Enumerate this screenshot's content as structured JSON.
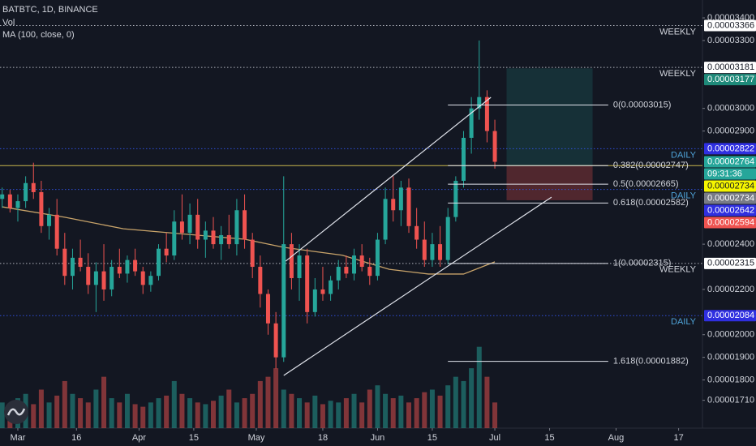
{
  "chart_data": {
    "type": "candlestick",
    "up_color": "#26a69a",
    "down_color": "#ef5350",
    "xlim": [
      -4.56,
      175.1
    ],
    "ylim": [
      1.587e-05,
      3.479e-05
    ],
    "xticks": [
      {
        "value": 0,
        "label": "Mar"
      },
      {
        "value": 15,
        "label": "16"
      },
      {
        "value": 31,
        "label": "Apr"
      },
      {
        "value": 45,
        "label": "15"
      },
      {
        "value": 61,
        "label": "May"
      },
      {
        "value": 78,
        "label": "18"
      },
      {
        "value": 92,
        "label": "Jun"
      },
      {
        "value": 106,
        "label": "15"
      },
      {
        "value": 122,
        "label": "Jul"
      },
      {
        "value": 136,
        "label": "15"
      },
      {
        "value": 153,
        "label": "Aug"
      },
      {
        "value": 169,
        "label": "17"
      }
    ],
    "yticks": [
      {
        "value": 3.4e-05,
        "label": "0.00003400"
      },
      {
        "value": 3.3e-05,
        "label": "0.00003300"
      },
      {
        "value": 3e-05,
        "label": "0.00003000"
      },
      {
        "value": 2.9e-05,
        "label": "0.00002900"
      },
      {
        "value": 2.4e-05,
        "label": "0.00002400"
      },
      {
        "value": 2.2e-05,
        "label": "0.00002200"
      },
      {
        "value": 2e-05,
        "label": "0.00002000"
      },
      {
        "value": 1.9e-05,
        "label": "0.00001900"
      },
      {
        "value": 1.8e-05,
        "label": "0.00001800"
      },
      {
        "value": 1.71e-05,
        "label": "0.00001710"
      }
    ],
    "x": [
      -4,
      -2,
      0,
      2,
      4,
      6,
      8,
      10,
      12,
      14,
      16,
      18,
      20,
      22,
      24,
      26,
      28,
      30,
      32,
      34,
      36,
      38,
      40,
      42,
      44,
      46,
      48,
      50,
      52,
      54,
      56,
      58,
      60,
      62,
      64,
      66,
      68,
      70,
      72,
      74,
      76,
      78,
      80,
      82,
      84,
      86,
      88,
      90,
      92,
      94,
      96,
      98,
      100,
      102,
      104,
      106,
      108,
      110,
      112,
      114,
      116,
      118,
      120,
      122
    ],
    "series": [
      {
        "name": "BATBTC, 1D, BINANCE",
        "ohlc": [
          [
            2.6e-05,
            2.65e-05,
            2.56e-05,
            2.62e-05
          ],
          [
            2.62e-05,
            2.64e-05,
            2.54e-05,
            2.56e-05
          ],
          [
            2.56e-05,
            2.62e-05,
            2.5e-05,
            2.59e-05
          ],
          [
            2.59e-05,
            2.7e-05,
            2.56e-05,
            2.67e-05
          ],
          [
            2.67e-05,
            2.76e-05,
            2.6e-05,
            2.63e-05
          ],
          [
            2.63e-05,
            2.68e-05,
            2.45e-05,
            2.48e-05
          ],
          [
            2.48e-05,
            2.56e-05,
            2.42e-05,
            2.53e-05
          ],
          [
            2.53e-05,
            2.6e-05,
            2.35e-05,
            2.38e-05
          ],
          [
            2.38e-05,
            2.45e-05,
            2.22e-05,
            2.26e-05
          ],
          [
            2.26e-05,
            2.38e-05,
            2.2e-05,
            2.34e-05
          ],
          [
            2.34e-05,
            2.42e-05,
            2.28e-05,
            2.3e-05
          ],
          [
            2.3e-05,
            2.36e-05,
            2.18e-05,
            2.22e-05
          ],
          [
            2.22e-05,
            2.32e-05,
            2.1e-05,
            2.28e-05
          ],
          [
            2.28e-05,
            2.4e-05,
            2.15e-05,
            2.2e-05
          ],
          [
            2.2e-05,
            2.33e-05,
            2.17e-05,
            2.3e-05
          ],
          [
            2.3e-05,
            2.38e-05,
            2.25e-05,
            2.27e-05
          ],
          [
            2.27e-05,
            2.35e-05,
            2.23e-05,
            2.33e-05
          ],
          [
            2.33e-05,
            2.38e-05,
            2.26e-05,
            2.28e-05
          ],
          [
            2.28e-05,
            2.3e-05,
            2.18e-05,
            2.22e-05
          ],
          [
            2.22e-05,
            2.28e-05,
            2.19e-05,
            2.26e-05
          ],
          [
            2.26e-05,
            2.4e-05,
            2.24e-05,
            2.38e-05
          ],
          [
            2.38e-05,
            2.45e-05,
            2.32e-05,
            2.35e-05
          ],
          [
            2.35e-05,
            2.55e-05,
            2.33e-05,
            2.5e-05
          ],
          [
            2.5e-05,
            2.62e-05,
            2.42e-05,
            2.45e-05
          ],
          [
            2.45e-05,
            2.58e-05,
            2.4e-05,
            2.53e-05
          ],
          [
            2.53e-05,
            2.6e-05,
            2.38e-05,
            2.42e-05
          ],
          [
            2.42e-05,
            2.5e-05,
            2.34e-05,
            2.46e-05
          ],
          [
            2.46e-05,
            2.52e-05,
            2.38e-05,
            2.4e-05
          ],
          [
            2.4e-05,
            2.48e-05,
            2.33e-05,
            2.44e-05
          ],
          [
            2.44e-05,
            2.53e-05,
            2.38e-05,
            2.4e-05
          ],
          [
            2.4e-05,
            2.6e-05,
            2.35e-05,
            2.55e-05
          ],
          [
            2.55e-05,
            2.62e-05,
            2.38e-05,
            2.42e-05
          ],
          [
            2.42e-05,
            2.45e-05,
            2.25e-05,
            2.3e-05
          ],
          [
            2.3e-05,
            2.35e-05,
            2.12e-05,
            2.18e-05
          ],
          [
            2.18e-05,
            2.2e-05,
            2e-05,
            2.05e-05
          ],
          [
            2.05e-05,
            2.1e-05,
            1.85e-05,
            1.9e-05
          ],
          [
            1.9e-05,
            2.7e-05,
            1.88e-05,
            2.4e-05
          ],
          [
            2.4e-05,
            2.45e-05,
            2.2e-05,
            2.25e-05
          ],
          [
            2.25e-05,
            2.4e-05,
            2.15e-05,
            2.35e-05
          ],
          [
            2.35e-05,
            2.38e-05,
            2.05e-05,
            2.1e-05
          ],
          [
            2.1e-05,
            2.25e-05,
            2.08e-05,
            2.2e-05
          ],
          [
            2.2e-05,
            2.3e-05,
            2.15e-05,
            2.18e-05
          ],
          [
            2.18e-05,
            2.26e-05,
            2.15e-05,
            2.24e-05
          ],
          [
            2.24e-05,
            2.33e-05,
            2.2e-05,
            2.3e-05
          ],
          [
            2.3e-05,
            2.35e-05,
            2.25e-05,
            2.27e-05
          ],
          [
            2.27e-05,
            2.38e-05,
            2.24e-05,
            2.35e-05
          ],
          [
            2.35e-05,
            2.4e-05,
            2.28e-05,
            2.3e-05
          ],
          [
            2.3e-05,
            2.34e-05,
            2.22e-05,
            2.26e-05
          ],
          [
            2.26e-05,
            2.45e-05,
            2.24e-05,
            2.42e-05
          ],
          [
            2.42e-05,
            2.65e-05,
            2.4e-05,
            2.6e-05
          ],
          [
            2.6e-05,
            2.7e-05,
            2.5e-05,
            2.55e-05
          ],
          [
            2.55e-05,
            2.68e-05,
            2.48e-05,
            2.65e-05
          ],
          [
            2.65e-05,
            2.69e-05,
            2.45e-05,
            2.48e-05
          ],
          [
            2.48e-05,
            2.56e-05,
            2.38e-05,
            2.42e-05
          ],
          [
            2.42e-05,
            2.5e-05,
            2.3e-05,
            2.33e-05
          ],
          [
            2.33e-05,
            2.45e-05,
            2.3e-05,
            2.4e-05
          ],
          [
            2.4e-05,
            2.48e-05,
            2.3e-05,
            2.33e-05
          ],
          [
            2.33e-05,
            2.56e-05,
            2.31e-05,
            2.52e-05
          ],
          [
            2.52e-05,
            2.7e-05,
            2.5e-05,
            2.68e-05
          ],
          [
            2.68e-05,
            2.9e-05,
            2.65e-05,
            2.87e-05
          ],
          [
            2.87e-05,
            3.05e-05,
            2.8e-05,
            3e-05
          ],
          [
            3e-05,
            3.3e-05,
            2.95e-05,
            3.05e-05
          ],
          [
            3.05e-05,
            3.08e-05,
            2.85e-05,
            2.9e-05
          ],
          [
            2.9e-05,
            2.95e-05,
            2.734e-05,
            2.764e-05
          ]
        ]
      },
      {
        "name": "Vol",
        "vol_lim": [
          0,
          500
        ],
        "values": [
          30,
          25,
          35,
          40,
          28,
          45,
          30,
          38,
          55,
          40,
          35,
          30,
          45,
          60,
          35,
          30,
          40,
          28,
          25,
          30,
          35,
          38,
          55,
          40,
          35,
          30,
          28,
          32,
          38,
          45,
          30,
          35,
          40,
          55,
          60,
          70,
          45,
          40,
          35,
          30,
          38,
          28,
          32,
          30,
          35,
          40,
          30,
          45,
          50,
          40,
          35,
          38,
          30,
          35,
          42,
          45,
          38,
          50,
          60,
          55,
          70,
          95,
          60,
          30
        ]
      },
      {
        "name": "MA (100, close, 0)",
        "color": "#c9a46a",
        "x": [
          -4,
          12,
          27,
          41,
          58,
          68,
          83,
          95,
          105,
          114,
          122
        ],
        "values": [
          2.565e-05,
          2.519e-05,
          2.468e-05,
          2.447e-05,
          2.422e-05,
          2.386e-05,
          2.351e-05,
          2.289e-05,
          2.268e-05,
          2.268e-05,
          2.322e-05
        ]
      }
    ],
    "levels": [
      {
        "value": 3.366e-05,
        "label": "WEEKLY",
        "color": "#b2b5be",
        "dash": true
      },
      {
        "value": 3.181e-05,
        "label": "WEEKLY",
        "color": "#b2b5be",
        "dash": true
      },
      {
        "value": 2.822e-05,
        "label": "DAILY",
        "color": "#2f4fd8",
        "dash": true
      },
      {
        "value": 2.747e-05,
        "color": "#c9b74c",
        "dash": false
      },
      {
        "value": 2.642e-05,
        "label": "DAILY",
        "color": "#2f4fd8",
        "dash": true
      },
      {
        "value": 2.315e-05,
        "label": "WEEKLY",
        "color": "#b2b5be",
        "dash": true
      },
      {
        "value": 2.084e-05,
        "label": "DAILY",
        "color": "#2f4fd8",
        "dash": true
      }
    ],
    "fib": {
      "x": [
        110,
        151
      ],
      "levels": [
        {
          "value": 3.015e-05,
          "label": "0(0.00003015)"
        },
        {
          "value": 2.747e-05,
          "label": "0.382(0.00002747)"
        },
        {
          "value": 2.665e-05,
          "label": "0.5(0.00002665)"
        },
        {
          "value": 2.582e-05,
          "label": "0.618(0.00002582)"
        },
        {
          "value": 2.315e-05,
          "label": "1(0.00002315)"
        },
        {
          "value": 1.882e-05,
          "label": "1.618(0.00001882)"
        }
      ]
    },
    "trend_lines": [
      {
        "x": [
          68.5,
          121
        ],
        "y": [
          2.325e-05,
          3.049e-05
        ]
      },
      {
        "x": [
          68,
          136.5
        ],
        "y": [
          1.82e-05,
          2.608e-05
        ]
      }
    ],
    "position": {
      "x": [
        125,
        147
      ],
      "target": 3.177e-05,
      "entry": 2.747e-05,
      "stop": 2.594e-05
    },
    "tags": [
      {
        "value": 3.366e-05,
        "label": "0.00003366",
        "bg": "#ffffff",
        "fg": "#131722"
      },
      {
        "value": 3.181e-05,
        "label": "0.00003181",
        "bg": "#ffffff",
        "fg": "#131722"
      },
      {
        "value": 3.177e-05,
        "label": "0.00003177",
        "bg": "#1f8a7a",
        "fg": "#ffffff"
      },
      {
        "value": 2.822e-05,
        "label": "0.00002822",
        "bg": "#2f2fe0",
        "fg": "#ffffff"
      },
      {
        "value": 2.764e-05,
        "label": "0.00002764",
        "bg": "#26a69a",
        "fg": "#ffffff"
      },
      {
        "label": "09:31:36",
        "bg": "#26a69a",
        "fg": "#ffffff"
      },
      {
        "value": 2.734e-05,
        "label": "0.00002734",
        "bg": "#f5f500",
        "fg": "#131722"
      },
      {
        "value": 2.734e-05,
        "label": "0.00002734",
        "bg": "#787b86",
        "fg": "#ffffff"
      },
      {
        "value": 2.642e-05,
        "label": "0.00002642",
        "bg": "#2f2fe0",
        "fg": "#ffffff"
      },
      {
        "value": 2.594e-05,
        "label": "0.00002594",
        "bg": "#ef5350",
        "fg": "#ffffff"
      },
      {
        "value": 2.315e-05,
        "label": "0.00002315",
        "bg": "#ffffff",
        "fg": "#131722"
      },
      {
        "value": 2.084e-05,
        "label": "0.00002084",
        "bg": "#2f2fe0",
        "fg": "#ffffff"
      }
    ]
  }
}
